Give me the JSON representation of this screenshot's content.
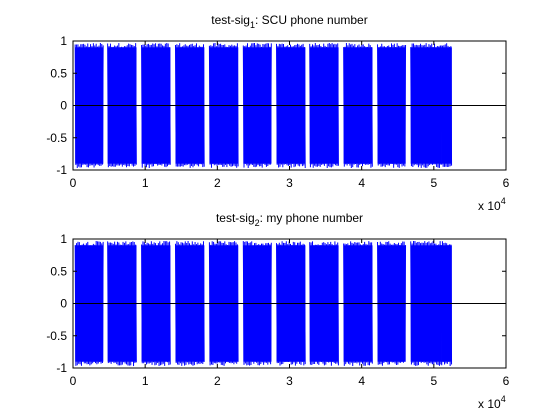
{
  "figure": {
    "background": "#ffffff"
  },
  "chart_data": [
    {
      "type": "line",
      "title": {
        "prefix": "test-sig",
        "subscript": "1",
        "suffix": ": SCU phone number"
      },
      "xlabel": "",
      "ylabel": "",
      "xlim": [
        0,
        60000
      ],
      "ylim": [
        -1,
        1
      ],
      "x_ticks": [
        0,
        10000,
        20000,
        30000,
        40000,
        50000,
        60000
      ],
      "x_tick_labels": [
        "0",
        "1",
        "2",
        "3",
        "4",
        "5",
        "6"
      ],
      "x_exponent": {
        "base": "x 10",
        "power": "4"
      },
      "y_ticks": [
        -1,
        -0.5,
        0,
        0.5,
        1
      ],
      "y_tick_labels": [
        "-1",
        "-0.5",
        "0",
        "0.5",
        "1"
      ],
      "zero_line": true,
      "grid": false,
      "series": [
        {
          "color": "#0000ff",
          "description": "bursty tone signal, amplitude ~±1 during bursts",
          "bursts": [
            {
              "start": 300,
              "end": 4200
            },
            {
              "start": 4800,
              "end": 8800
            },
            {
              "start": 9500,
              "end": 13500
            },
            {
              "start": 14200,
              "end": 18200
            },
            {
              "start": 18900,
              "end": 22900
            },
            {
              "start": 23600,
              "end": 27500
            },
            {
              "start": 28200,
              "end": 32200
            },
            {
              "start": 32800,
              "end": 36800
            },
            {
              "start": 37500,
              "end": 41500
            },
            {
              "start": 42200,
              "end": 46100
            },
            {
              "start": 46800,
              "end": 51000
            },
            {
              "start": 51000,
              "end": 52500
            }
          ],
          "amplitude": 0.97
        }
      ]
    },
    {
      "type": "line",
      "title": {
        "prefix": "test-sig",
        "subscript": "2",
        "suffix": ": my phone number"
      },
      "xlabel": "",
      "ylabel": "",
      "xlim": [
        0,
        60000
      ],
      "ylim": [
        -1,
        1
      ],
      "x_ticks": [
        0,
        10000,
        20000,
        30000,
        40000,
        50000,
        60000
      ],
      "x_tick_labels": [
        "0",
        "1",
        "2",
        "3",
        "4",
        "5",
        "6"
      ],
      "x_exponent": {
        "base": "x 10",
        "power": "4"
      },
      "y_ticks": [
        -1,
        -0.5,
        0,
        0.5,
        1
      ],
      "y_tick_labels": [
        "-1",
        "-0.5",
        "0",
        "0.5",
        "1"
      ],
      "zero_line": true,
      "grid": false,
      "series": [
        {
          "color": "#0000ff",
          "description": "bursty tone signal, amplitude ~±1 during bursts",
          "bursts": [
            {
              "start": 300,
              "end": 4200
            },
            {
              "start": 4800,
              "end": 8800
            },
            {
              "start": 9500,
              "end": 13500
            },
            {
              "start": 14200,
              "end": 18200
            },
            {
              "start": 18900,
              "end": 22900
            },
            {
              "start": 23600,
              "end": 27500
            },
            {
              "start": 28200,
              "end": 32200
            },
            {
              "start": 32800,
              "end": 36800
            },
            {
              "start": 37500,
              "end": 41500
            },
            {
              "start": 42200,
              "end": 46100
            },
            {
              "start": 46800,
              "end": 51000
            },
            {
              "start": 51000,
              "end": 52500
            }
          ],
          "amplitude": 0.97
        }
      ]
    }
  ]
}
